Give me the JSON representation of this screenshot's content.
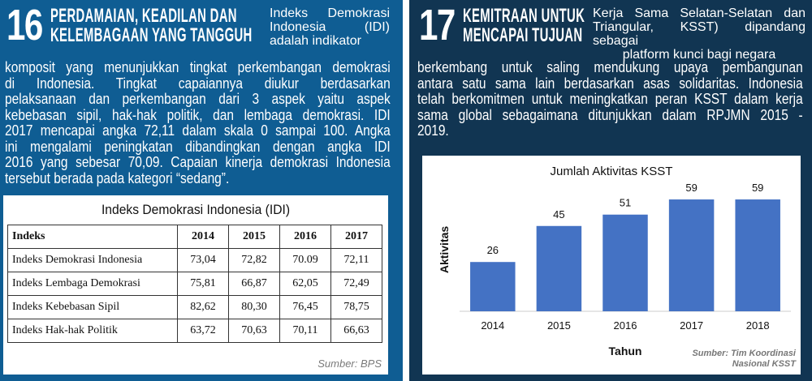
{
  "left": {
    "number": "16",
    "goal_title": [
      "PERDAMAIAN, KEADILAN DAN",
      "KELEMBAGAAN YANG TANGGUH"
    ],
    "intro_lines": [
      "Indeks Demokrasi",
      "Indonesia (IDI)",
      "adalah indikator"
    ],
    "body_lines": [
      "komposit yang menunjukkan tingkat perkembangan demokrasi",
      "di Indonesia. Tingkat capaiannya diukur berdasarkan",
      "pelaksanaan dan perkembangan dari 3 aspek yaitu aspek",
      "kebebasan sipil, hak-hak politik, dan lembaga demokrasi. IDI",
      "2017 mencapai angka 72,11 dalam skala 0 sampai 100. Angka",
      "ini mengalami peningkatan dibandingkan dengan angka IDI",
      "2016 yang sebesar 70,09. Capaian kinerja demokrasi Indonesia",
      "tersebut berada pada kategori “sedang”."
    ],
    "table": {
      "title": "Indeks Demokrasi Indonesia (IDI)",
      "headers": [
        "Indeks",
        "2014",
        "2015",
        "2016",
        "2017"
      ],
      "rows": [
        [
          "Indeks Demokrasi Indonesia",
          "73,04",
          "72,82",
          "70.09",
          "72,11"
        ],
        [
          "Indeks Lembaga Demokrasi",
          "75,81",
          "66,87",
          "62,05",
          "72,49"
        ],
        [
          "Indeks Kebebasan Sipil",
          "82,62",
          "80,30",
          "76,45",
          "78,75"
        ],
        [
          "Indeks Hak-hak Politik",
          "63,72",
          "70,63",
          "70,11",
          "66,63"
        ]
      ],
      "source": "Sumber: BPS"
    }
  },
  "right": {
    "number": "17",
    "goal_title": [
      "KEMITRAAN UNTUK",
      "MENCAPAI TUJUAN"
    ],
    "intro_lines": [
      "Kerja Sama Selatan-Selatan dan",
      "Triangular, KSST) dipandang sebagai",
      "platform kunci bagi negara"
    ],
    "body_lines": [
      "berkembang untuk saling mendukung upaya pembangunan",
      "antara satu sama lain berdasarkan asas solidaritas. Indonesia",
      "telah berkomitmen untuk meningkatkan peran KSST dalam kerja",
      "sama global sebagaimana ditunjukkan dalam RPJMN 2015 -",
      "2019."
    ],
    "source_lines": [
      "Sumber: Tim Koordinasi",
      "Nasional KSST"
    ]
  },
  "colors": {
    "left_panel": "#0f5d93",
    "right_panel": "#113552",
    "bar": "#4472c4"
  },
  "chart_data": {
    "type": "bar",
    "title": "Jumlah Aktivitas KSST",
    "xlabel": "Tahun",
    "ylabel": "Aktivitas",
    "categories": [
      "2014",
      "2015",
      "2016",
      "2017",
      "2018"
    ],
    "values": [
      26,
      45,
      51,
      59,
      59
    ],
    "ylim": [
      0,
      65
    ],
    "grid": false,
    "legend": "none"
  }
}
